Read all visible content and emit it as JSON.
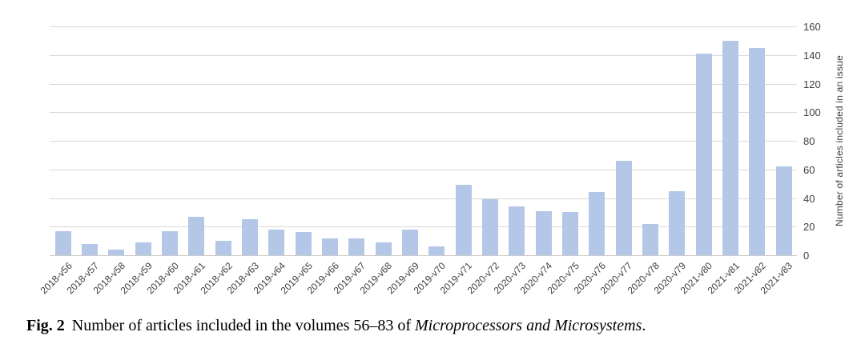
{
  "chart_data": {
    "type": "bar",
    "categories": [
      "2018-v56",
      "2018-v57",
      "2018-v58",
      "2018-v59",
      "2018-v60",
      "2018-v61",
      "2018-v62",
      "2018-v63",
      "2019-v64",
      "2019-v65",
      "2019-v66",
      "2019-v67",
      "2019-v68",
      "2019-v69",
      "2019-v70",
      "2019-v71",
      "2020-v72",
      "2020-v73",
      "2020-v74",
      "2020-v75",
      "2020-v76",
      "2020-v77",
      "2020-v78",
      "2020-v79",
      "2021-v80",
      "2021-v81",
      "2021-v82",
      "2021-v83"
    ],
    "values": [
      17,
      8,
      4,
      9,
      17,
      27,
      10,
      25,
      18,
      16,
      12,
      12,
      9,
      18,
      6,
      49,
      39,
      34,
      31,
      30,
      44,
      66,
      22,
      45,
      141,
      150,
      145,
      62
    ],
    "title": "",
    "xlabel": "",
    "ylabel": "Number of articles included in an issue",
    "ylim": [
      0,
      160
    ],
    "yticks": [
      0,
      20,
      40,
      60,
      80,
      100,
      120,
      140,
      160
    ],
    "yaxis_side": "right",
    "grid": true,
    "legend_position": "none",
    "bar_color": "#b4c7e7",
    "gridline_color": "#d9d9d9",
    "axis_text_color": "#404040"
  },
  "caption": {
    "label": "Fig. 2",
    "text_before_journal": "Number of articles included in the volumes 56–83 of ",
    "journal": "Microprocessors and Microsystems",
    "suffix": "."
  }
}
